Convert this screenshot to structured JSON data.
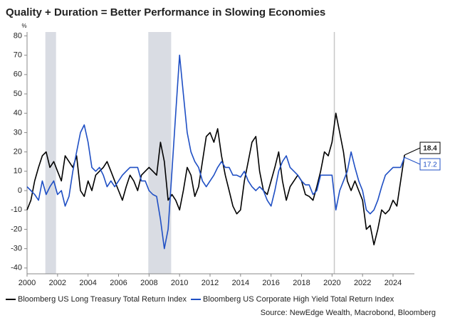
{
  "chart_data": {
    "type": "line",
    "title": "Quality + Duration = Better Performance in Slowing Economies",
    "y_label": "%",
    "source": "Source: NewEdge Wealth, Macrobond, Bloomberg",
    "x": [
      2000,
      2000.25,
      2000.5,
      2000.75,
      2001,
      2001.25,
      2001.5,
      2001.75,
      2002,
      2002.25,
      2002.5,
      2002.75,
      2003,
      2003.25,
      2003.5,
      2003.75,
      2004,
      2004.25,
      2004.5,
      2004.75,
      2005,
      2005.25,
      2005.5,
      2005.75,
      2006,
      2006.25,
      2006.5,
      2006.75,
      2007,
      2007.25,
      2007.5,
      2007.75,
      2008,
      2008.25,
      2008.5,
      2008.75,
      2009,
      2009.25,
      2009.5,
      2009.75,
      2010,
      2010.25,
      2010.5,
      2010.75,
      2011,
      2011.25,
      2011.5,
      2011.75,
      2012,
      2012.25,
      2012.5,
      2012.75,
      2013,
      2013.25,
      2013.5,
      2013.75,
      2014,
      2014.25,
      2014.5,
      2014.75,
      2015,
      2015.25,
      2015.5,
      2015.75,
      2016,
      2016.25,
      2016.5,
      2016.75,
      2017,
      2017.25,
      2017.5,
      2017.75,
      2018,
      2018.25,
      2018.5,
      2018.75,
      2019,
      2019.25,
      2019.5,
      2019.75,
      2020,
      2020.25,
      2020.5,
      2020.75,
      2021,
      2021.25,
      2021.5,
      2021.75,
      2022,
      2022.25,
      2022.5,
      2022.75,
      2023,
      2023.25,
      2023.5,
      2023.75,
      2024,
      2024.25,
      2024.5,
      2024.75
    ],
    "series": [
      {
        "name": "Bloomberg US Long Treasury Total Return Index",
        "color": "#000000",
        "values": [
          -10,
          -5,
          5,
          12,
          18,
          20,
          12,
          15,
          10,
          5,
          18,
          15,
          12,
          18,
          0,
          -3,
          5,
          0,
          8,
          10,
          12,
          15,
          10,
          5,
          0,
          -5,
          2,
          8,
          5,
          0,
          8,
          10,
          12,
          10,
          8,
          25,
          15,
          -5,
          -2,
          -5,
          -10,
          0,
          12,
          8,
          -3,
          2,
          15,
          28,
          30,
          25,
          32,
          18,
          8,
          0,
          -8,
          -12,
          -10,
          5,
          15,
          25,
          28,
          10,
          0,
          -2,
          5,
          12,
          20,
          5,
          -5,
          2,
          5,
          8,
          5,
          -2,
          -3,
          -5,
          2,
          10,
          20,
          18,
          25,
          40,
          30,
          20,
          5,
          0,
          5,
          0,
          -5,
          -20,
          -18,
          -28,
          -20,
          -10,
          -12,
          -10,
          -5,
          -8,
          5,
          18.4
        ]
      },
      {
        "name": "Bloomberg US Corporate High Yield Total Return Index",
        "color": "#1f4fc4",
        "values": [
          2,
          0,
          -2,
          -5,
          5,
          -2,
          2,
          5,
          -2,
          0,
          -8,
          -3,
          10,
          20,
          30,
          34,
          25,
          12,
          10,
          12,
          8,
          2,
          5,
          2,
          5,
          8,
          10,
          12,
          12,
          12,
          5,
          5,
          0,
          -2,
          -3,
          -15,
          -30,
          -20,
          10,
          40,
          70,
          50,
          30,
          20,
          15,
          12,
          5,
          2,
          5,
          8,
          12,
          15,
          12,
          12,
          8,
          8,
          7,
          10,
          5,
          2,
          0,
          2,
          0,
          -5,
          -8,
          0,
          10,
          15,
          18,
          12,
          10,
          8,
          5,
          3,
          3,
          -2,
          0,
          8,
          8,
          8,
          8,
          -10,
          0,
          5,
          10,
          20,
          12,
          5,
          0,
          -10,
          -12,
          -10,
          -5,
          2,
          8,
          10,
          12,
          12,
          12,
          17.2
        ]
      }
    ],
    "recessions": [
      [
        2001.2,
        2001.9
      ],
      [
        2007.95,
        2009.45
      ]
    ],
    "vlines": [
      2020.15
    ],
    "xlim": [
      2000,
      2025.4
    ],
    "xticks": [
      2000,
      2002,
      2004,
      2006,
      2008,
      2010,
      2012,
      2014,
      2016,
      2018,
      2020,
      2022,
      2024
    ],
    "ylim": [
      -43,
      82
    ],
    "yticks": [
      -40,
      -30,
      -20,
      -10,
      0,
      10,
      20,
      30,
      40,
      50,
      60,
      70,
      80
    ],
    "grid": false
  }
}
